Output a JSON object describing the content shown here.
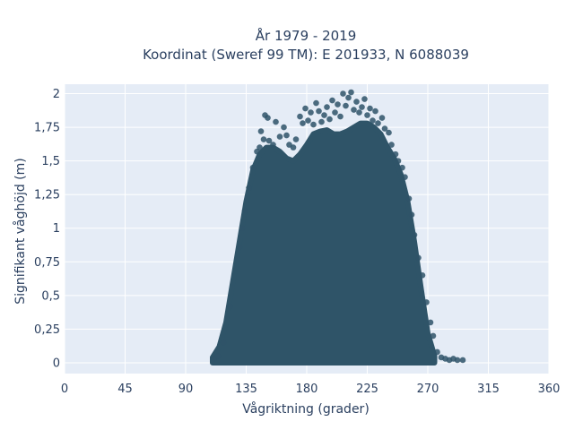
{
  "chart_data": {
    "type": "scatter",
    "title": "År 1979 - 2019",
    "subtitle": "Koordinat (Sweref 99 TM): E 201933, N 6088039",
    "xlabel": "Vågriktning (grader)",
    "ylabel": "Signifikant våghöjd (m)",
    "xlim": [
      0,
      360
    ],
    "ylim": [
      -0.08,
      2.07
    ],
    "x_ticks": [
      0,
      45,
      90,
      135,
      180,
      225,
      270,
      315,
      360
    ],
    "x_tick_labels": [
      "0",
      "45",
      "90",
      "135",
      "180",
      "225",
      "270",
      "315",
      "360"
    ],
    "y_ticks": [
      0,
      0.25,
      0.5,
      0.75,
      1,
      1.25,
      1.5,
      1.75,
      2
    ],
    "y_tick_labels": [
      "0",
      "0,25",
      "0,5",
      "0,75",
      "1",
      "1,25",
      "1,5",
      "1,75",
      "2"
    ],
    "grid": true,
    "marker_color": "#2f5468",
    "background_color": "#e5ecf6",
    "envelope": {
      "x": [
        110,
        115,
        120,
        125,
        130,
        135,
        140,
        145,
        150,
        155,
        160,
        165,
        170,
        175,
        180,
        185,
        190,
        195,
        200,
        205,
        210,
        215,
        220,
        225,
        230,
        235,
        240,
        245,
        250,
        255,
        260,
        265,
        270,
        275
      ],
      "y_max": [
        0.04,
        0.12,
        0.3,
        0.6,
        0.9,
        1.2,
        1.43,
        1.55,
        1.6,
        1.6,
        1.57,
        1.52,
        1.5,
        1.55,
        1.62,
        1.7,
        1.72,
        1.73,
        1.7,
        1.7,
        1.72,
        1.75,
        1.78,
        1.78,
        1.75,
        1.7,
        1.6,
        1.52,
        1.4,
        1.2,
        0.9,
        0.55,
        0.22,
        0.05
      ]
    },
    "outliers": [
      {
        "x": 111,
        "y": 0.03
      },
      {
        "x": 114,
        "y": 0.05
      },
      {
        "x": 118,
        "y": 0.15
      },
      {
        "x": 123,
        "y": 0.42
      },
      {
        "x": 130,
        "y": 0.86
      },
      {
        "x": 132,
        "y": 1.0
      },
      {
        "x": 134,
        "y": 1.13
      },
      {
        "x": 137,
        "y": 1.3
      },
      {
        "x": 140,
        "y": 1.45
      },
      {
        "x": 143,
        "y": 1.57
      },
      {
        "x": 145,
        "y": 1.6
      },
      {
        "x": 146,
        "y": 1.72
      },
      {
        "x": 148,
        "y": 1.66
      },
      {
        "x": 149,
        "y": 1.84
      },
      {
        "x": 151,
        "y": 1.82
      },
      {
        "x": 152,
        "y": 1.65
      },
      {
        "x": 155,
        "y": 1.62
      },
      {
        "x": 157,
        "y": 1.79
      },
      {
        "x": 160,
        "y": 1.68
      },
      {
        "x": 163,
        "y": 1.75
      },
      {
        "x": 165,
        "y": 1.69
      },
      {
        "x": 167,
        "y": 1.62
      },
      {
        "x": 170,
        "y": 1.6
      },
      {
        "x": 172,
        "y": 1.66
      },
      {
        "x": 175,
        "y": 1.83
      },
      {
        "x": 177,
        "y": 1.78
      },
      {
        "x": 179,
        "y": 1.89
      },
      {
        "x": 181,
        "y": 1.8
      },
      {
        "x": 183,
        "y": 1.86
      },
      {
        "x": 185,
        "y": 1.77
      },
      {
        "x": 187,
        "y": 1.93
      },
      {
        "x": 189,
        "y": 1.87
      },
      {
        "x": 191,
        "y": 1.79
      },
      {
        "x": 193,
        "y": 1.84
      },
      {
        "x": 195,
        "y": 1.9
      },
      {
        "x": 197,
        "y": 1.81
      },
      {
        "x": 199,
        "y": 1.95
      },
      {
        "x": 201,
        "y": 1.86
      },
      {
        "x": 203,
        "y": 1.92
      },
      {
        "x": 205,
        "y": 1.83
      },
      {
        "x": 207,
        "y": 2.0
      },
      {
        "x": 209,
        "y": 1.91
      },
      {
        "x": 211,
        "y": 1.97
      },
      {
        "x": 213,
        "y": 2.01
      },
      {
        "x": 215,
        "y": 1.88
      },
      {
        "x": 217,
        "y": 1.94
      },
      {
        "x": 219,
        "y": 1.86
      },
      {
        "x": 221,
        "y": 1.9
      },
      {
        "x": 223,
        "y": 1.96
      },
      {
        "x": 225,
        "y": 1.84
      },
      {
        "x": 227,
        "y": 1.89
      },
      {
        "x": 229,
        "y": 1.8
      },
      {
        "x": 231,
        "y": 1.87
      },
      {
        "x": 233,
        "y": 1.78
      },
      {
        "x": 236,
        "y": 1.82
      },
      {
        "x": 238,
        "y": 1.74
      },
      {
        "x": 241,
        "y": 1.71
      },
      {
        "x": 243,
        "y": 1.62
      },
      {
        "x": 246,
        "y": 1.55
      },
      {
        "x": 248,
        "y": 1.5
      },
      {
        "x": 251,
        "y": 1.45
      },
      {
        "x": 253,
        "y": 1.38
      },
      {
        "x": 256,
        "y": 1.22
      },
      {
        "x": 258,
        "y": 1.1
      },
      {
        "x": 260,
        "y": 0.95
      },
      {
        "x": 263,
        "y": 0.78
      },
      {
        "x": 266,
        "y": 0.65
      },
      {
        "x": 269,
        "y": 0.45
      },
      {
        "x": 272,
        "y": 0.3
      },
      {
        "x": 274,
        "y": 0.2
      },
      {
        "x": 277,
        "y": 0.08
      },
      {
        "x": 280,
        "y": 0.04
      },
      {
        "x": 283,
        "y": 0.03
      },
      {
        "x": 286,
        "y": 0.02
      },
      {
        "x": 289,
        "y": 0.03
      },
      {
        "x": 292,
        "y": 0.02
      },
      {
        "x": 296,
        "y": 0.02
      }
    ]
  }
}
